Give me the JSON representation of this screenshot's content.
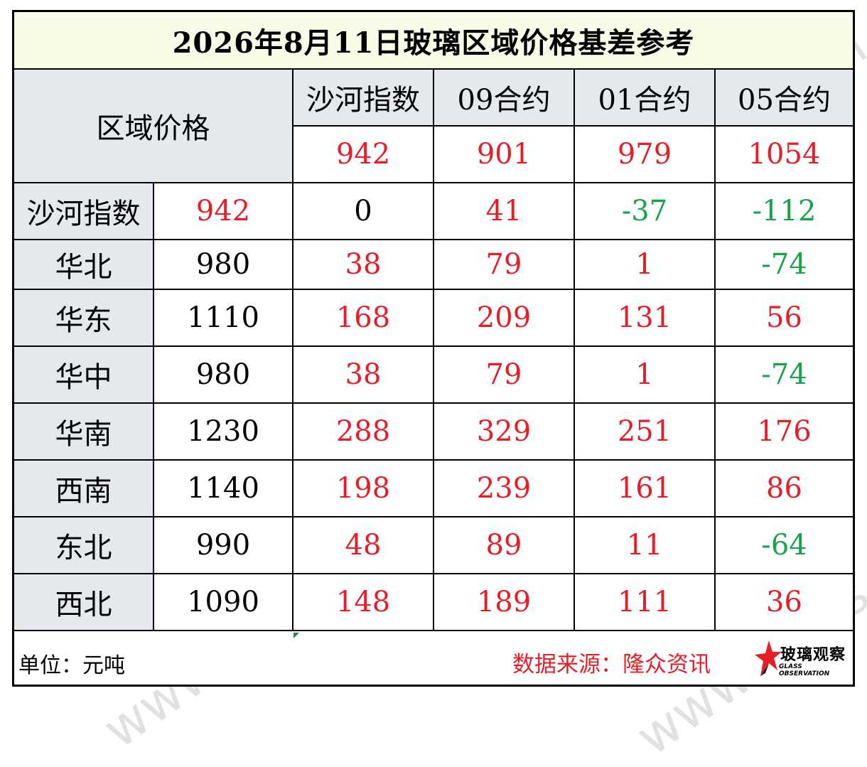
{
  "title": "2026年8月11日玻璃区域价格基差参考",
  "header": {
    "corner_label": "区域价格",
    "columns": [
      "沙河指数",
      "09合约",
      "01合约",
      "05合约"
    ],
    "column_prices": [
      "942",
      "901",
      "979",
      "1054"
    ]
  },
  "rows": [
    {
      "region": "沙河指数",
      "price": "942",
      "basis": [
        "0",
        "41",
        "-37",
        "-112"
      ]
    },
    {
      "region": "华北",
      "price": "980",
      "basis": [
        "38",
        "79",
        "1",
        "-74"
      ]
    },
    {
      "region": "华东",
      "price": "1110",
      "basis": [
        "168",
        "209",
        "131",
        "56"
      ]
    },
    {
      "region": "华中",
      "price": "980",
      "basis": [
        "38",
        "79",
        "1",
        "-74"
      ]
    },
    {
      "region": "华南",
      "price": "1230",
      "basis": [
        "288",
        "329",
        "251",
        "176"
      ]
    },
    {
      "region": "西南",
      "price": "1140",
      "basis": [
        "198",
        "239",
        "161",
        "86"
      ]
    },
    {
      "region": "东北",
      "price": "990",
      "basis": [
        "48",
        "89",
        "11",
        "-64"
      ]
    },
    {
      "region": "西北",
      "price": "1090",
      "basis": [
        "148",
        "189",
        "111",
        "36"
      ]
    }
  ],
  "footer": {
    "unit": "单位：元吨",
    "source": "数据来源：隆众资讯",
    "logo_text_cn": "玻璃观察",
    "logo_text_en": "GLASS OBSERVATION"
  },
  "watermark": "www.glass.sh.cn",
  "colors": {
    "positive": "#e61e28",
    "negative": "#16a44a",
    "header_fill": "#e5e9ee",
    "title_fill": "#fafbe6"
  }
}
